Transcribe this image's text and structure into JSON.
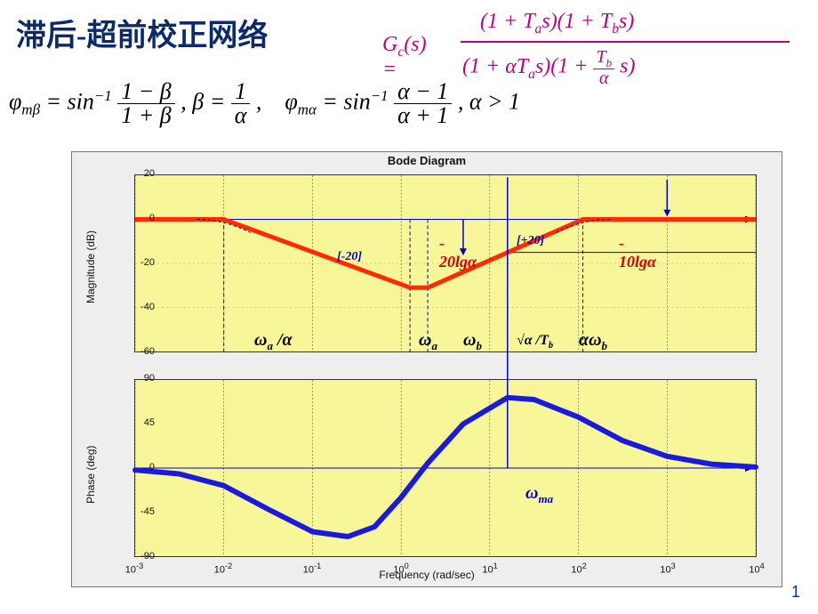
{
  "title": "滞后-超前校正网络",
  "gc": {
    "lhs": "G_c(s) =",
    "num": "(1 + T_a s)(1 + T_b s)",
    "den_left": "(1 + αT_a s)(1 + ",
    "den_frac_top": "T_b",
    "den_frac_bot": "α",
    "den_right": " s)"
  },
  "phi": {
    "beta_lhs": "φ",
    "beta_sub": "mβ",
    "sin": "= sin",
    "sup": "−1",
    "beta_top": "1 − β",
    "beta_bot": "1 + β",
    "beta_def_top": "1",
    "beta_def_bot": "α",
    "alpha_sub": "mα",
    "alpha_top": "α − 1",
    "alpha_bot": "α + 1",
    "alpha_cond": ", α > 1",
    "comma_beta": ", β ="
  },
  "chart": {
    "title": "Bode Diagram",
    "xlabel": "Frequency  (rad/sec)",
    "ylabel_mag": "Magnitude (dB)",
    "ylabel_phase": "Phase (deg)",
    "xticks": [
      "10^-3",
      "10^-2",
      "10^-1",
      "10^0",
      "10^1",
      "10^2",
      "10^3",
      "10^4"
    ],
    "mag_yticks": [
      "20",
      "0",
      "-20",
      "-40",
      "-60"
    ],
    "phase_yticks": [
      "90",
      "45",
      "0",
      "-45",
      "-90"
    ],
    "bg": "#f7f79a",
    "grid_color": "#333333",
    "mag_line": {
      "color": "#ff2a00",
      "width": 5,
      "points": [
        [
          -3,
          0
        ],
        [
          -2,
          0
        ],
        [
          0.1,
          -31
        ],
        [
          0.3,
          -31
        ],
        [
          2.05,
          0
        ],
        [
          4,
          0
        ]
      ]
    },
    "asymptote_blue": {
      "color": "#0000cc",
      "width": 1
    },
    "phase_line": {
      "color": "#1a1add",
      "width": 6,
      "points": [
        [
          -3,
          -2
        ],
        [
          -2.5,
          -6
        ],
        [
          -2,
          -18
        ],
        [
          -1.5,
          -42
        ],
        [
          -1,
          -65
        ],
        [
          -0.6,
          -70
        ],
        [
          -0.3,
          -60
        ],
        [
          0,
          -30
        ],
        [
          0.3,
          5
        ],
        [
          0.7,
          45
        ],
        [
          1.2,
          72
        ],
        [
          1.5,
          70
        ],
        [
          2,
          52
        ],
        [
          2.5,
          28
        ],
        [
          3,
          12
        ],
        [
          3.5,
          4
        ],
        [
          4,
          1
        ]
      ]
    },
    "annotations": {
      "slope_down": "[-20]",
      "slope_up": "[+20]",
      "minus20lg": "-20lgα",
      "minus10lg": "-10lgα",
      "wa_alpha": "ω_a /α",
      "wa": "ω_a",
      "wb": "ω_b",
      "sqrt": "√α / T_b",
      "awb": "αω_b",
      "wma": "ω_ma"
    }
  },
  "page": "1"
}
